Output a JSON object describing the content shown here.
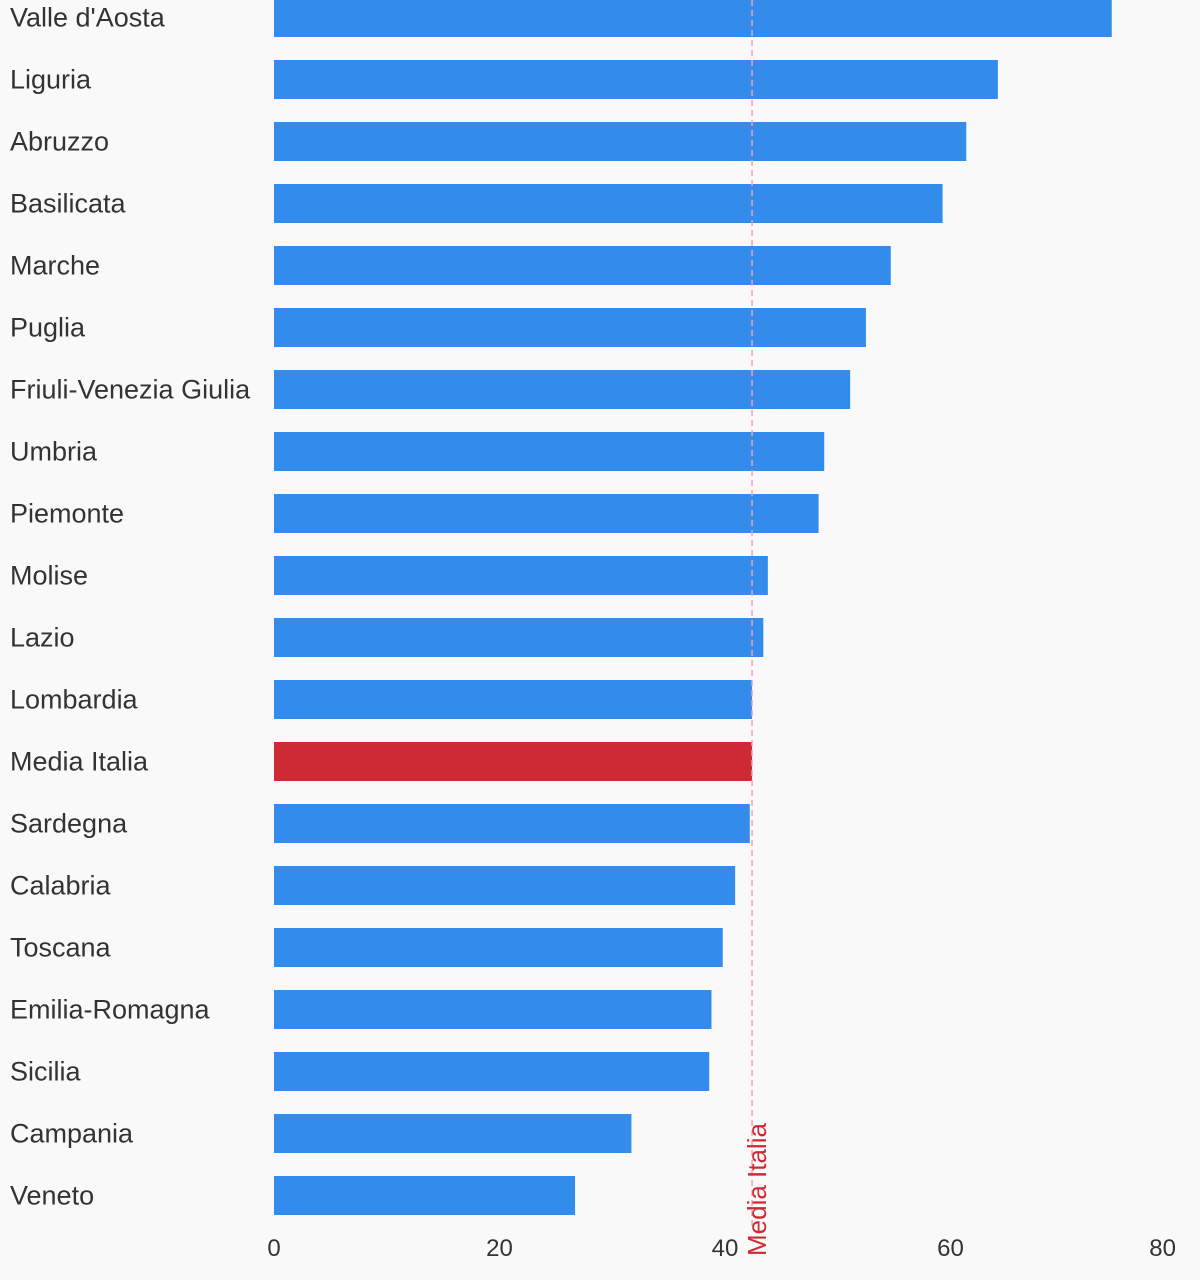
{
  "chart_data": {
    "type": "bar",
    "orientation": "horizontal",
    "title": "",
    "xlabel": "",
    "ylabel": "",
    "categories": [
      "Valle d'Aosta",
      "Liguria",
      "Abruzzo",
      "Basilicata",
      "Marche",
      "Puglia",
      "Friuli-Venezia Giulia",
      "Umbria",
      "Piemonte",
      "Molise",
      "Lazio",
      "Lombardia",
      "Media Italia",
      "Sardegna",
      "Calabria",
      "Toscana",
      "Emilia-Romagna",
      "Sicilia",
      "Campania",
      "Veneto"
    ],
    "values": [
      74.3,
      64.2,
      61.4,
      59.3,
      54.7,
      52.5,
      51.1,
      48.8,
      48.3,
      43.8,
      43.4,
      42.4,
      42.4,
      42.2,
      40.9,
      39.8,
      38.8,
      38.6,
      31.7,
      26.7
    ],
    "highlight_category": "Media Italia",
    "xlim": [
      0,
      80
    ],
    "xticks": [
      0,
      20,
      40,
      60,
      80
    ],
    "grid": false,
    "legend": "none",
    "reference_line": {
      "value": 42.4,
      "label": "Media Italia",
      "style": "dashed"
    },
    "colors": {
      "bar": "#338bec",
      "highlight": "#cd2a33",
      "reference_line": "#f1a4a8",
      "reference_label": "#cd2a33",
      "text": "#333333",
      "background": "#f9f9f9"
    }
  }
}
